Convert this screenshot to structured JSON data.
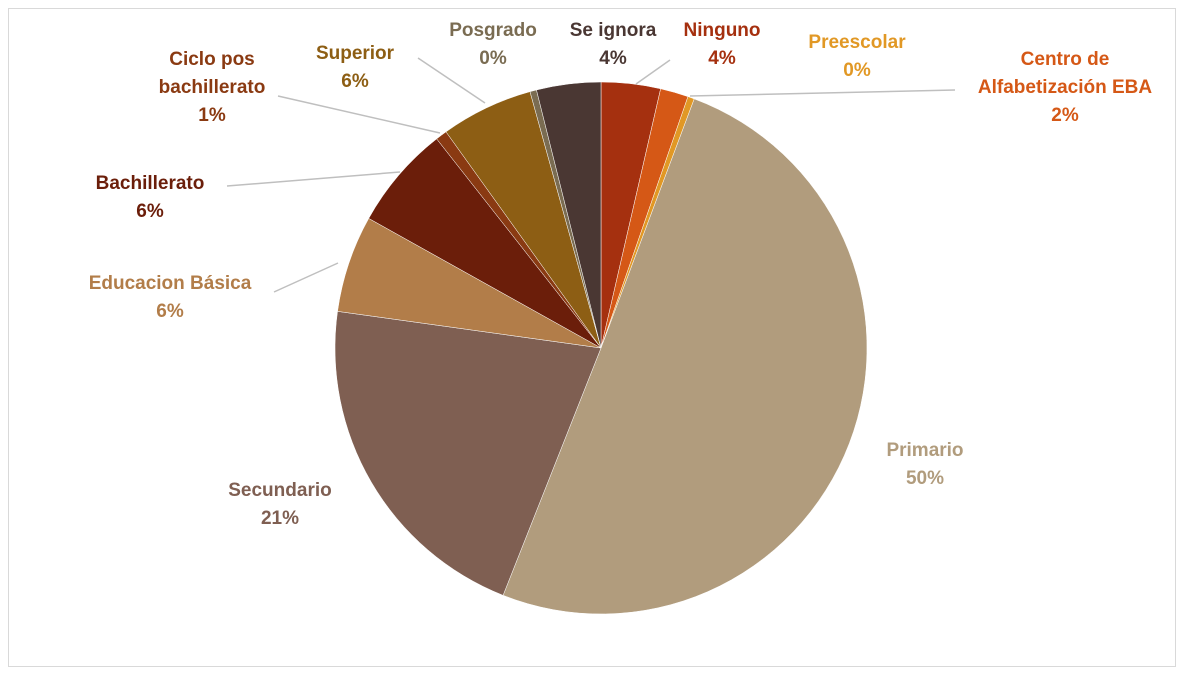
{
  "chart_data": {
    "type": "pie",
    "categories": [
      "Ninguno",
      "Centro de Alfabetización EBA",
      "Preescolar",
      "Primario",
      "Secundario",
      "Educacion Básica",
      "Bachillerato",
      "Ciclo pos bachillerato",
      "Superior",
      "Posgrado",
      "Se ignora"
    ],
    "values": [
      3.6,
      1.7,
      0.4,
      50.3,
      21.2,
      5.9,
      6.3,
      0.7,
      5.6,
      0.4,
      3.9
    ],
    "value_labels": [
      "4%",
      "2%",
      "0%",
      "50%",
      "21%",
      "6%",
      "6%",
      "1%",
      "6%",
      "0%",
      "4%"
    ],
    "colors": [
      "#a5300f",
      "#d55816",
      "#e19825",
      "#b19c7d",
      "#7f5f52",
      "#b27d49",
      "#6b1e0a",
      "#8a3a12",
      "#8d5e14",
      "#7a6c52",
      "#4a3733"
    ]
  }
}
